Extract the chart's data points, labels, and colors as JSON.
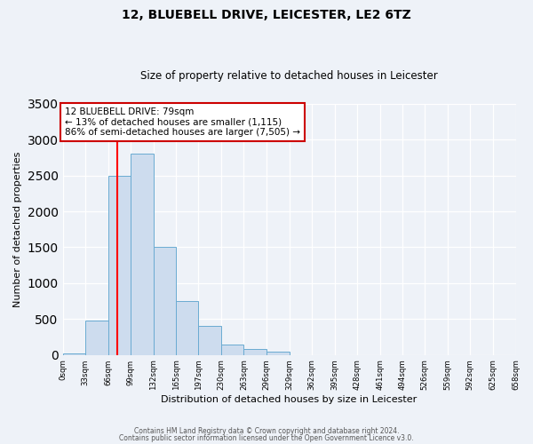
{
  "title_line1": "12, BLUEBELL DRIVE, LEICESTER, LE2 6TZ",
  "title_line2": "Size of property relative to detached houses in Leicester",
  "xlabel": "Distribution of detached houses by size in Leicester",
  "ylabel": "Number of detached properties",
  "bar_edges": [
    0,
    33,
    66,
    99,
    132,
    165,
    197,
    230,
    263,
    296,
    329,
    362,
    395,
    428,
    461,
    494,
    526,
    559,
    592,
    625,
    658
  ],
  "bar_heights": [
    20,
    480,
    2500,
    2800,
    1500,
    750,
    400,
    150,
    80,
    50,
    0,
    0,
    0,
    0,
    0,
    0,
    0,
    0,
    0,
    0
  ],
  "bar_color": "#cddcee",
  "bar_edge_color": "#6aabd2",
  "vline_x": 79,
  "vline_color": "red",
  "ylim": [
    0,
    3500
  ],
  "annotation_text": "12 BLUEBELL DRIVE: 79sqm\n← 13% of detached houses are smaller (1,115)\n86% of semi-detached houses are larger (7,505) →",
  "annotation_box_color": "white",
  "annotation_box_edge": "#cc0000",
  "footer_line1": "Contains HM Land Registry data © Crown copyright and database right 2024.",
  "footer_line2": "Contains public sector information licensed under the Open Government Licence v3.0.",
  "tick_labels": [
    "0sqm",
    "33sqm",
    "66sqm",
    "99sqm",
    "132sqm",
    "165sqm",
    "197sqm",
    "230sqm",
    "263sqm",
    "296sqm",
    "329sqm",
    "362sqm",
    "395sqm",
    "428sqm",
    "461sqm",
    "494sqm",
    "526sqm",
    "559sqm",
    "592sqm",
    "625sqm",
    "658sqm"
  ],
  "background_color": "#eef2f8"
}
